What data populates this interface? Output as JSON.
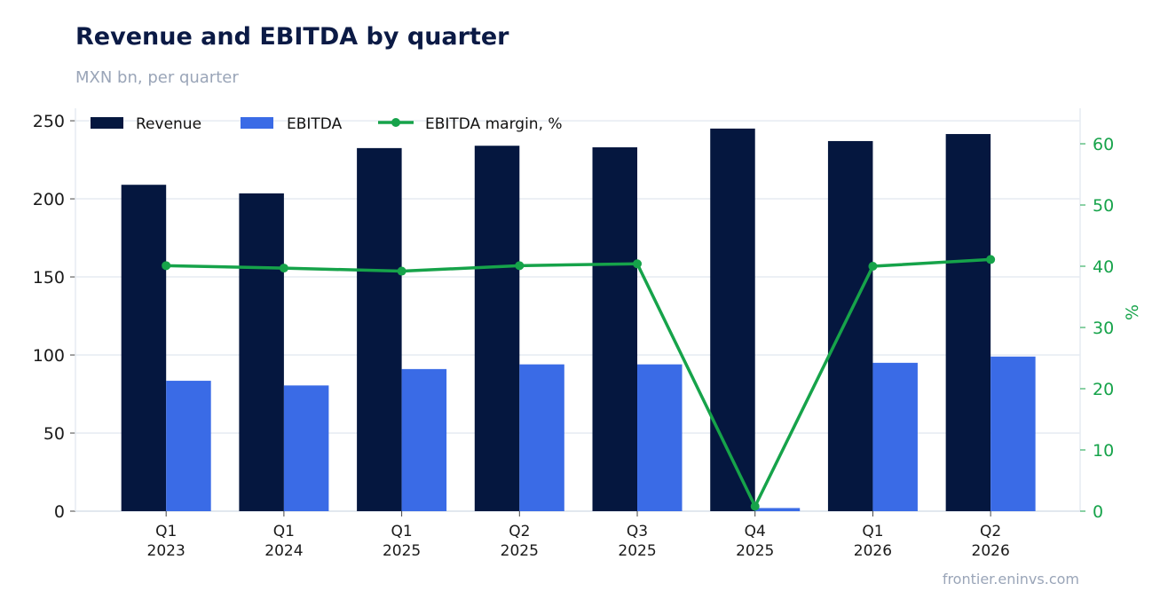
{
  "title": "Revenue and EBITDA by quarter",
  "subtitle": "MXN bn, per quarter",
  "source": "frontier.eninvs.com",
  "colors": {
    "revenue": "#05173f",
    "ebitda": "#3a6be6",
    "margin": "#16a34a",
    "grid": "#e6ebf2",
    "axis_text": "#1a1a1a",
    "right_axis_text": "#16a34a"
  },
  "chart_data": {
    "type": "bar",
    "categories": [
      [
        "Q1",
        "2023"
      ],
      [
        "Q1",
        "2024"
      ],
      [
        "Q1",
        "2025"
      ],
      [
        "Q2",
        "2025"
      ],
      [
        "Q3",
        "2025"
      ],
      [
        "Q4",
        "2025"
      ],
      [
        "Q1",
        "2026"
      ],
      [
        "Q2",
        "2026"
      ]
    ],
    "series": [
      {
        "name": "Revenue",
        "type": "bar",
        "axis": "left",
        "values": [
          209,
          203.5,
          232.5,
          234,
          233,
          245,
          237,
          241.5
        ]
      },
      {
        "name": "EBITDA",
        "type": "bar",
        "axis": "left",
        "values": [
          83.5,
          80.5,
          91,
          94,
          94,
          2,
          95,
          99
        ]
      },
      {
        "name": "EBITDA margin, %",
        "type": "line",
        "axis": "right",
        "values": [
          40.1,
          39.7,
          39.2,
          40.1,
          40.4,
          0.8,
          40.0,
          41.1
        ]
      }
    ],
    "ylim_left": [
      0,
      258
    ],
    "yticks_left": [
      0,
      50,
      100,
      150,
      200,
      250
    ],
    "ylim_right": [
      0,
      65.8
    ],
    "yticks_right": [
      0,
      10,
      20,
      30,
      40,
      50,
      60
    ],
    "ylabel_right": "%",
    "xlabel": "",
    "ylabel": "",
    "legend": "top-left",
    "grid": true
  }
}
